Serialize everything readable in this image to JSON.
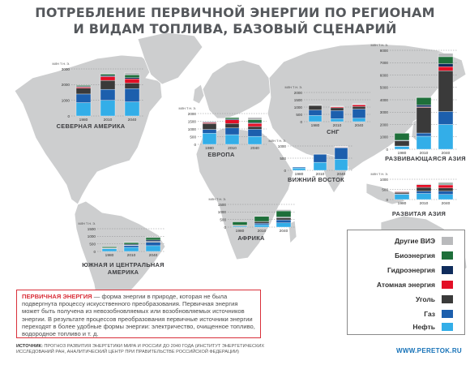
{
  "title": {
    "line1": "ПОТРЕБЛЕНИЕ ПЕРВИЧНОЙ ЭНЕРГИИ ПО РЕГИОНАМ",
    "line2": "И ВИДАМ ТОПЛИВА, БАЗОВЫЙ СЦЕНАРИЙ"
  },
  "legend": {
    "items": [
      {
        "key": "other",
        "label": "Другие ВИЭ",
        "color": "#b9babc"
      },
      {
        "key": "bio",
        "label": "Биоэнергия",
        "color": "#1e6f3a"
      },
      {
        "key": "hydro",
        "label": "Гидроэнергия",
        "color": "#0f2c5c"
      },
      {
        "key": "nuclear",
        "label": "Атомная энергия",
        "color": "#e30f26"
      },
      {
        "key": "coal",
        "label": "Уголь",
        "color": "#3a3a3a"
      },
      {
        "key": "gas",
        "label": "Газ",
        "color": "#1c5fad"
      },
      {
        "key": "oil",
        "label": "Нефть",
        "color": "#33aee8"
      }
    ]
  },
  "colors": {
    "map": "#cdcecf",
    "title": "#55585c",
    "accent_red": "#d9303a",
    "link": "#1672b8"
  },
  "note": {
    "term": "ПЕРВИЧНАЯ ЭНЕРГИЯ",
    "text": " — форма энергии в природе, которая не была подвергнута процессу искусственного преобразования. Первичная энергия может быть получена из невозобновляемых или возобновляемых источников энергии. В результате процессов преобразования первичные источники энергии переходят в более удобные формы энергии: электричество, очищенное топливо, водородное топливо и т. д."
  },
  "source": {
    "label": "ИСТОЧНИК:",
    "text": " ПРОГНОЗ РАЗВИТИЯ ЭНЕРГЕТИКИ МИРА И РОССИИ ДО 2040 ГОДА (ИНСТИТУТ ЭНЕРГЕТИЧЕСКИХ ИССЛЕДОВАНИЙ РАН, АНАЛИТИЧЕСКИЙ ЦЕНТР ПРИ ПРАВИТЕЛЬСТВЕ РОССИЙСКОЙ ФЕДЕРАЦИИ)"
  },
  "site": "WWW.PERETOK.RU",
  "chart_data": [
    {
      "type": "bar",
      "stacked": true,
      "region": "СЕВЕРНАЯ АМЕРИКА",
      "unit": "МЛН Т Н. Э.",
      "categories": [
        "1980",
        "2010",
        "2040"
      ],
      "ylim": [
        0,
        3000
      ],
      "yticks": [
        0,
        1000,
        2000,
        3000
      ],
      "series": [
        {
          "key": "oil",
          "values": [
            850,
            1000,
            900
          ]
        },
        {
          "key": "gas",
          "values": [
            550,
            700,
            850
          ]
        },
        {
          "key": "coal",
          "values": [
            370,
            570,
            350
          ]
        },
        {
          "key": "nuclear",
          "values": [
            70,
            240,
            270
          ]
        },
        {
          "key": "hydro",
          "values": [
            50,
            60,
            70
          ]
        },
        {
          "key": "bio",
          "values": [
            60,
            100,
            180
          ]
        },
        {
          "key": "other",
          "values": [
            10,
            40,
            150
          ]
        }
      ]
    },
    {
      "type": "bar",
      "stacked": true,
      "region": "ЕВРОПА",
      "unit": "МЛН Т Н. Э.",
      "categories": [
        "1980",
        "2010",
        "2040"
      ],
      "ylim": [
        0,
        2000
      ],
      "yticks": [
        0,
        500,
        1000,
        1500,
        2000
      ],
      "series": [
        {
          "key": "oil",
          "values": [
            720,
            630,
            520
          ]
        },
        {
          "key": "gas",
          "values": [
            250,
            440,
            460
          ]
        },
        {
          "key": "coal",
          "values": [
            380,
            290,
            180
          ]
        },
        {
          "key": "nuclear",
          "values": [
            60,
            230,
            200
          ]
        },
        {
          "key": "hydro",
          "values": [
            40,
            50,
            55
          ]
        },
        {
          "key": "bio",
          "values": [
            20,
            100,
            190
          ]
        },
        {
          "key": "other",
          "values": [
            5,
            20,
            140
          ]
        }
      ]
    },
    {
      "type": "bar",
      "stacked": true,
      "region": "СНГ",
      "unit": "МЛН Т Н. Э.",
      "categories": [
        "1980",
        "2010",
        "2040"
      ],
      "ylim": [
        0,
        2000
      ],
      "yticks": [
        0,
        500,
        1000,
        1500,
        2000
      ],
      "series": [
        {
          "key": "oil",
          "values": [
            420,
            200,
            240
          ]
        },
        {
          "key": "gas",
          "values": [
            380,
            560,
            620
          ]
        },
        {
          "key": "coal",
          "values": [
            310,
            190,
            180
          ]
        },
        {
          "key": "nuclear",
          "values": [
            20,
            70,
            110
          ]
        },
        {
          "key": "hydro",
          "values": [
            20,
            25,
            35
          ]
        },
        {
          "key": "bio",
          "values": [
            10,
            10,
            25
          ]
        },
        {
          "key": "other",
          "values": [
            0,
            2,
            10
          ]
        }
      ]
    },
    {
      "type": "bar",
      "stacked": true,
      "region": "ВИЖНИЙ ВОСТОК",
      "unit": "МЛН Т Н. Э.",
      "categories": [
        "1980",
        "2010",
        "2040"
      ],
      "ylim": [
        0,
        1000
      ],
      "yticks": [
        0,
        500,
        1000
      ],
      "series": [
        {
          "key": "oil",
          "values": [
            90,
            330,
            460
          ]
        },
        {
          "key": "gas",
          "values": [
            40,
            330,
            470
          ]
        },
        {
          "key": "coal",
          "values": [
            0,
            5,
            10
          ]
        },
        {
          "key": "nuclear",
          "values": [
            0,
            0,
            20
          ]
        },
        {
          "key": "hydro",
          "values": [
            0,
            2,
            5
          ]
        },
        {
          "key": "bio",
          "values": [
            0,
            0,
            5
          ]
        },
        {
          "key": "other",
          "values": [
            0,
            0,
            20
          ]
        }
      ]
    },
    {
      "type": "bar",
      "stacked": true,
      "region": "РАЗВИВАЮЩАЯСЯ АЗИЯ",
      "unit": "МЛН Т Н. Э.",
      "categories": [
        "1980",
        "2010",
        "2040"
      ],
      "ylim": [
        0,
        8000
      ],
      "yticks": [
        0,
        1000,
        2000,
        3000,
        4000,
        5000,
        6000,
        7000,
        8000
      ],
      "series": [
        {
          "key": "oil",
          "values": [
            230,
            1050,
            2000
          ]
        },
        {
          "key": "gas",
          "values": [
            30,
            260,
            1050
          ]
        },
        {
          "key": "coal",
          "values": [
            420,
            2070,
            3300
          ]
        },
        {
          "key": "nuclear",
          "values": [
            5,
            40,
            320
          ]
        },
        {
          "key": "hydro",
          "values": [
            40,
            160,
            250
          ]
        },
        {
          "key": "bio",
          "values": [
            570,
            600,
            560
          ]
        },
        {
          "key": "other",
          "values": [
            5,
            70,
            270
          ]
        }
      ]
    },
    {
      "type": "bar",
      "stacked": true,
      "region": "РАЗВИТАЯ АЗИЯ",
      "unit": "МЛН Т Н. Э.",
      "categories": [
        "1980",
        "2010",
        "2040"
      ],
      "ylim": [
        0,
        1000
      ],
      "yticks": [
        0,
        500,
        1000
      ],
      "series": [
        {
          "key": "oil",
          "values": [
            250,
            300,
            250
          ]
        },
        {
          "key": "gas",
          "values": [
            30,
            110,
            160
          ]
        },
        {
          "key": "coal",
          "values": [
            70,
            190,
            160
          ]
        },
        {
          "key": "nuclear",
          "values": [
            30,
            130,
            150
          ]
        },
        {
          "key": "hydro",
          "values": [
            20,
            20,
            25
          ]
        },
        {
          "key": "bio",
          "values": [
            5,
            20,
            40
          ]
        },
        {
          "key": "other",
          "values": [
            2,
            15,
            70
          ]
        }
      ]
    },
    {
      "type": "bar",
      "stacked": true,
      "region": "АФРИКА",
      "unit": "МЛН Т Н. Э.",
      "categories": [
        "1980",
        "2010",
        "2040"
      ],
      "ylim": [
        0,
        1500
      ],
      "yticks": [
        0,
        500,
        1000,
        1500
      ],
      "series": [
        {
          "key": "oil",
          "values": [
            60,
            160,
            280
          ]
        },
        {
          "key": "gas",
          "values": [
            20,
            90,
            200
          ]
        },
        {
          "key": "coal",
          "values": [
            50,
            110,
            140
          ]
        },
        {
          "key": "nuclear",
          "values": [
            0,
            5,
            20
          ]
        },
        {
          "key": "hydro",
          "values": [
            5,
            10,
            30
          ]
        },
        {
          "key": "bio",
          "values": [
            210,
            330,
            400
          ]
        },
        {
          "key": "other",
          "values": [
            0,
            5,
            80
          ]
        }
      ]
    },
    {
      "type": "bar",
      "stacked": true,
      "region": "ЮЖНАЯ И ЦЕНТРАЛЬНАЯ АМЕРИКА",
      "unit": "МЛН Т Н. Э.",
      "categories": [
        "1980",
        "2010",
        "2040"
      ],
      "ylim": [
        0,
        1500
      ],
      "yticks": [
        0,
        500,
        1000,
        1500
      ],
      "series": [
        {
          "key": "oil",
          "values": [
            170,
            270,
            380
          ]
        },
        {
          "key": "gas",
          "values": [
            30,
            120,
            230
          ]
        },
        {
          "key": "coal",
          "values": [
            10,
            25,
            35
          ]
        },
        {
          "key": "nuclear",
          "values": [
            0,
            5,
            20
          ]
        },
        {
          "key": "hydro",
          "values": [
            20,
            60,
            90
          ]
        },
        {
          "key": "bio",
          "values": [
            70,
            110,
            160
          ]
        },
        {
          "key": "other",
          "values": [
            0,
            10,
            60
          ]
        }
      ]
    }
  ]
}
